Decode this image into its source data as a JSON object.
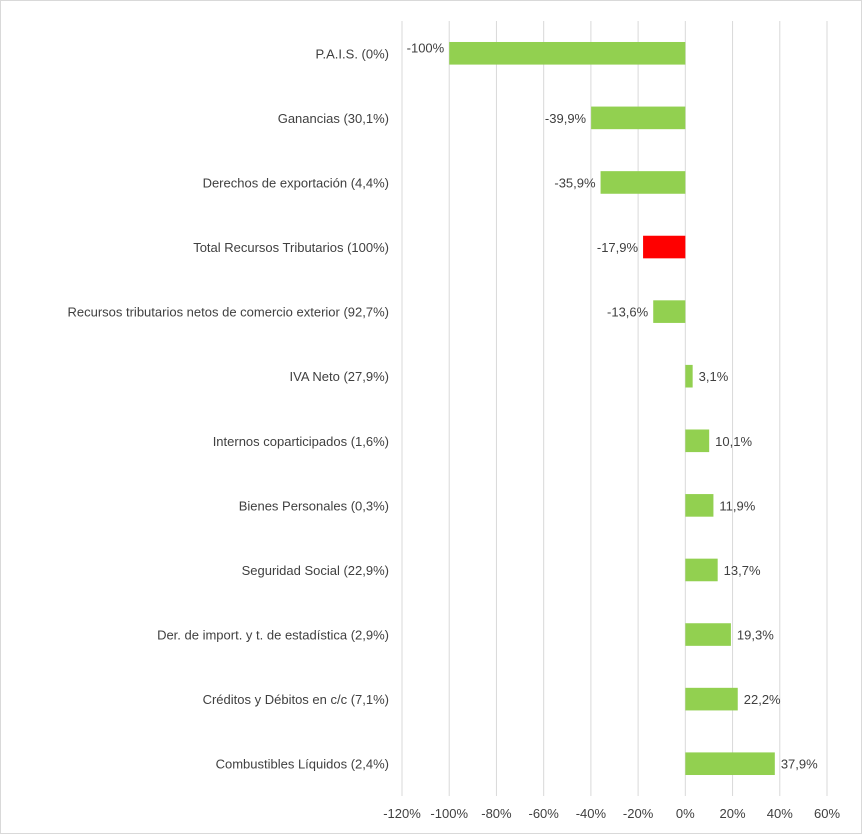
{
  "chart_data": {
    "type": "bar",
    "orientation": "horizontal",
    "categories": [
      "P.A.I.S. (0%)",
      "Ganancias (30,1%)",
      "Derechos de exportación (4,4%)",
      "Total Recursos Tributarios (100%)",
      "Recursos tributarios netos de comercio exterior (92,7%)",
      "IVA Neto (27,9%)",
      "Internos coparticipados (1,6%)",
      "Bienes Personales (0,3%)",
      "Seguridad Social (22,9%)",
      "Der. de import. y t. de estadística (2,9%)",
      "Créditos y Débitos en c/c (7,1%)",
      "Combustibles Líquidos (2,4%)"
    ],
    "values": [
      -100,
      -39.9,
      -35.9,
      -17.9,
      -13.6,
      3.1,
      10.1,
      11.9,
      13.7,
      19.3,
      22.2,
      37.9
    ],
    "value_labels": [
      "-100%",
      "-39,9%",
      "-35,9%",
      "-17,9%",
      "-13,6%",
      "3,1%",
      "10,1%",
      "11,9%",
      "13,7%",
      "19,3%",
      "22,2%",
      "37,9%"
    ],
    "bar_colors": [
      "#92d050",
      "#92d050",
      "#92d050",
      "#ff0000",
      "#92d050",
      "#92d050",
      "#92d050",
      "#92d050",
      "#92d050",
      "#92d050",
      "#92d050",
      "#92d050"
    ],
    "xlim": [
      -120,
      60
    ],
    "xticks": [
      -120,
      -100,
      -80,
      -60,
      -40,
      -20,
      0,
      20,
      40,
      60
    ],
    "xtick_labels": [
      "-120%",
      "-100%",
      "-80%",
      "-60%",
      "-40%",
      "-20%",
      "0%",
      "20%",
      "40%",
      "60%"
    ],
    "grid": "vertical",
    "legend": "none",
    "title": "",
    "xlabel": "",
    "ylabel": ""
  },
  "colors": {
    "positive_bar": "#92d050",
    "highlight_bar": "#ff0000",
    "gridline": "#d9d9d9",
    "text": "#404040"
  }
}
